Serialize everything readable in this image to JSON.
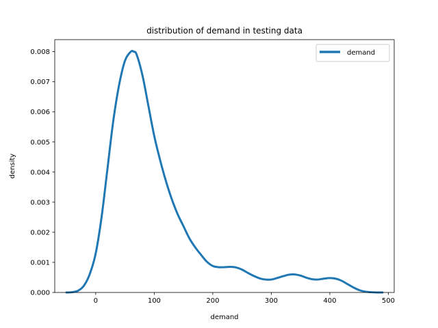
{
  "chart_data": {
    "type": "line",
    "title": "distribution of demand in testing data",
    "xlabel": "demand",
    "ylabel": "density",
    "xlim": [
      -70,
      510
    ],
    "ylim": [
      0,
      0.0084
    ],
    "xticks": [
      0,
      100,
      200,
      300,
      400,
      500
    ],
    "yticks": [
      0.0,
      0.001,
      0.002,
      0.003,
      0.004,
      0.005,
      0.006,
      0.007,
      0.008
    ],
    "ytick_labels": [
      "0.000",
      "0.001",
      "0.002",
      "0.003",
      "0.004",
      "0.005",
      "0.006",
      "0.007",
      "0.008"
    ],
    "grid": false,
    "legend_position": "top-right",
    "series": [
      {
        "name": "demand",
        "color": "#1f77b4",
        "x": [
          -50,
          -40,
          -30,
          -20,
          -10,
          0,
          10,
          20,
          30,
          40,
          50,
          60,
          65,
          70,
          80,
          90,
          100,
          110,
          120,
          130,
          140,
          150,
          160,
          170,
          180,
          190,
          200,
          210,
          220,
          230,
          240,
          250,
          260,
          270,
          280,
          290,
          300,
          310,
          320,
          330,
          340,
          350,
          360,
          370,
          380,
          390,
          400,
          410,
          420,
          430,
          440,
          450,
          460,
          470,
          480,
          490
        ],
        "y": [
          0.0,
          1e-05,
          6e-05,
          0.00023,
          0.00062,
          0.0013,
          0.0025,
          0.0041,
          0.0057,
          0.0069,
          0.0077,
          0.008,
          0.008,
          0.0079,
          0.0072,
          0.0062,
          0.0052,
          0.0044,
          0.0037,
          0.0031,
          0.0026,
          0.0022,
          0.0018,
          0.0015,
          0.00125,
          0.00102,
          0.00088,
          0.00084,
          0.00084,
          0.00085,
          0.00083,
          0.00076,
          0.00065,
          0.00055,
          0.00047,
          0.00043,
          0.00043,
          0.00048,
          0.00054,
          0.00059,
          0.0006,
          0.00056,
          0.00049,
          0.00044,
          0.00043,
          0.00046,
          0.00048,
          0.00046,
          0.00039,
          0.00028,
          0.00017,
          8e-05,
          3e-05,
          1e-05,
          0.0,
          0.0
        ]
      }
    ]
  }
}
